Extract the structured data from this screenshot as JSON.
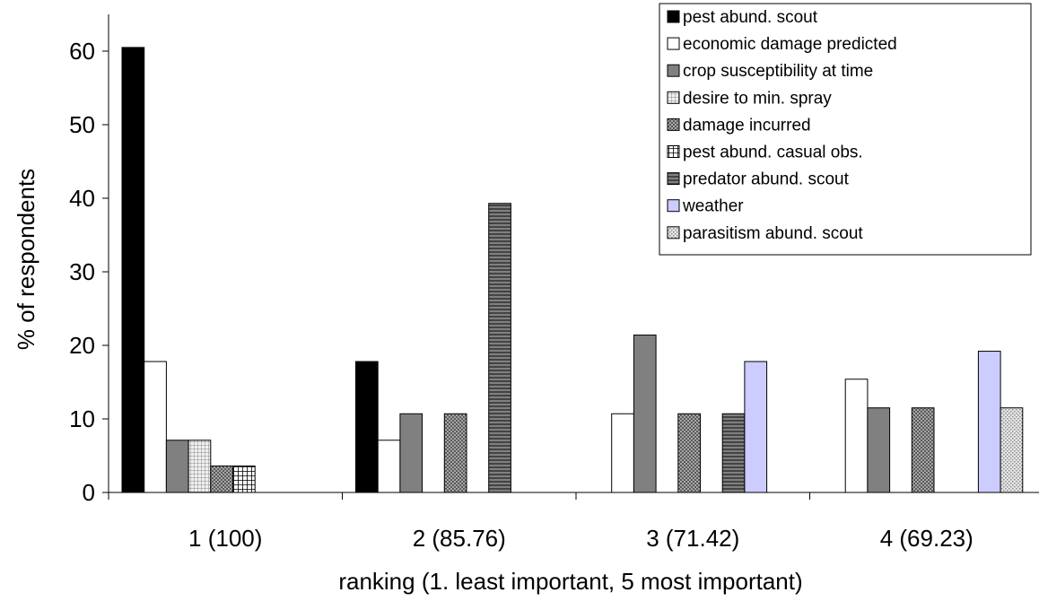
{
  "chart_data": {
    "type": "bar",
    "xlabel": "ranking (1. least important, 5 most important)",
    "ylabel": "% of respondents",
    "ylim": [
      0,
      65
    ],
    "yticks": [
      0,
      10,
      20,
      30,
      40,
      50,
      60
    ],
    "categories": [
      "1 (100)",
      "2 (85.76)",
      "3 (71.42)",
      "4 (69.23)"
    ],
    "legend_position": "top-right",
    "grid": false,
    "series": [
      {
        "name": "pest abund. scout",
        "values": [
          60.5,
          17.8,
          0,
          0
        ]
      },
      {
        "name": "economic damage predicted",
        "values": [
          17.8,
          7.1,
          10.7,
          15.4
        ]
      },
      {
        "name": "crop susceptibility at time",
        "values": [
          7.1,
          10.7,
          21.4,
          11.5
        ]
      },
      {
        "name": "desire to min. spray",
        "values": [
          7.1,
          0,
          0,
          0
        ]
      },
      {
        "name": "damage incurred",
        "values": [
          3.6,
          10.7,
          10.7,
          11.5
        ]
      },
      {
        "name": "pest abund. casual obs.",
        "values": [
          3.6,
          0,
          0,
          0
        ]
      },
      {
        "name": "predator abund. scout",
        "values": [
          0,
          39.3,
          10.7,
          0
        ]
      },
      {
        "name": "weather",
        "values": [
          0,
          0,
          17.8,
          19.2
        ]
      },
      {
        "name": "parasitism abund. scout",
        "values": [
          0,
          0,
          0,
          11.5
        ]
      }
    ],
    "colors": {
      "pest abund. scout": "#000000",
      "economic damage predicted": "#ffffff",
      "crop susceptibility at time": "#808080",
      "desire to min. spray": "#d9d9d9",
      "damage incurred": "#8c8c8c",
      "pest abund. casual obs.": "#ffffff",
      "predator abund. scout": "#595959",
      "weather": "#ccccff",
      "parasitism abund. scout": "#c0c0c0"
    }
  }
}
